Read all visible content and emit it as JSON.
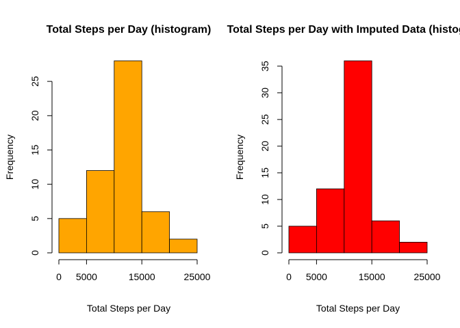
{
  "chart_data": [
    {
      "type": "bar",
      "title": "Total Steps per Day (histogram)",
      "xlabel": "Total Steps per Day",
      "ylabel": "Frequency",
      "bin_edges": [
        0,
        5000,
        10000,
        15000,
        20000,
        25000
      ],
      "values": [
        5,
        12,
        28,
        6,
        2
      ],
      "xticks": [
        "0",
        "5000",
        "15000",
        "25000"
      ],
      "xtick_values": [
        0,
        5000,
        15000,
        25000
      ],
      "yticks": [
        "0",
        "5",
        "10",
        "15",
        "20",
        "25"
      ],
      "ytick_values": [
        0,
        5,
        10,
        15,
        20,
        25
      ],
      "ylim": [
        0,
        28
      ],
      "color": "#FFA500",
      "grid": false
    },
    {
      "type": "bar",
      "title": "Total Steps per Day with Imputed Data (histogram)",
      "xlabel": "Total Steps per Day",
      "ylabel": "Frequency",
      "bin_edges": [
        0,
        5000,
        10000,
        15000,
        20000,
        25000
      ],
      "values": [
        5,
        12,
        36,
        6,
        2
      ],
      "xticks": [
        "0",
        "5000",
        "15000",
        "25000"
      ],
      "xtick_values": [
        0,
        5000,
        15000,
        25000
      ],
      "yticks": [
        "0",
        "5",
        "10",
        "15",
        "20",
        "25",
        "30",
        "35"
      ],
      "ytick_values": [
        0,
        5,
        10,
        15,
        20,
        25,
        30,
        35
      ],
      "ylim": [
        0,
        36
      ],
      "color": "#FF0000",
      "grid": false
    }
  ]
}
